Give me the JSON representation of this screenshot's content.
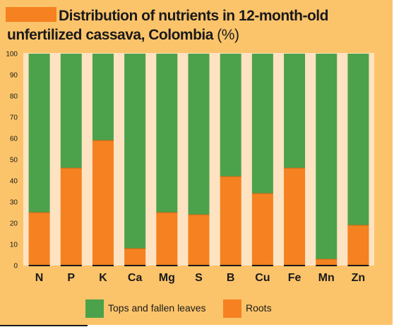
{
  "title_line1": "Distribution of nutrients in 12-month-old",
  "title_line2": "unfertilized cassava, Colombia",
  "title_unit": "(%)",
  "colors": {
    "background": "#fcc46a",
    "plot_background": "#fde3c2",
    "tops": "#4ca24a",
    "roots": "#f58120",
    "title_swatch": "#f58120"
  },
  "chart_data": {
    "type": "bar",
    "stacked": true,
    "title": "Distribution of nutrients in 12-month-old unfertilized cassava, Colombia (%)",
    "categories": [
      "N",
      "P",
      "K",
      "Ca",
      "Mg",
      "S",
      "B",
      "Cu",
      "Fe",
      "Mn",
      "Zn"
    ],
    "series": [
      {
        "name": "Roots",
        "values": [
          25,
          46,
          59,
          8,
          25,
          24,
          42,
          34,
          46,
          3,
          19
        ]
      },
      {
        "name": "Tops and fallen leaves",
        "values": [
          75,
          54,
          41,
          92,
          75,
          76,
          58,
          66,
          54,
          97,
          81
        ]
      }
    ],
    "ylim": [
      0,
      100
    ],
    "yticks": [
      0,
      10,
      20,
      30,
      40,
      50,
      60,
      70,
      80,
      90,
      100
    ],
    "legend_position": "bottom",
    "grid": false
  },
  "legend": {
    "tops_label": "Tops and fallen leaves",
    "roots_label": "Roots"
  }
}
